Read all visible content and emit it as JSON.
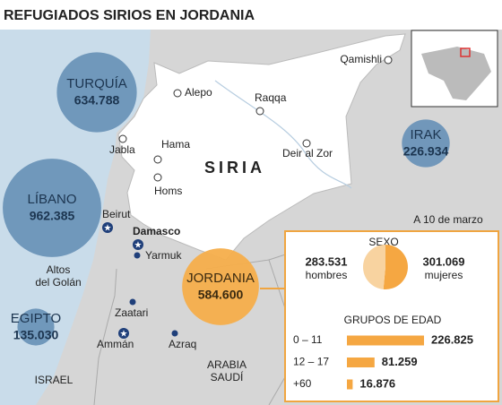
{
  "title": "REFUGIADOS SIRIOS EN JORDANIA",
  "country": "SIRIA",
  "places": [
    {
      "name": "Qamishli"
    },
    {
      "name": "Alepo"
    },
    {
      "name": "Raqqa"
    },
    {
      "name": "Jabla"
    },
    {
      "name": "Hama"
    },
    {
      "name": "Deir al Zor"
    },
    {
      "name": "Homs"
    },
    {
      "name": "Beirut"
    },
    {
      "name": "Damasco"
    },
    {
      "name": "Yarmuk"
    },
    {
      "name": "Zaatari"
    },
    {
      "name": "Ammán"
    },
    {
      "name": "Azraq"
    }
  ],
  "regions": [
    {
      "lines": [
        "Altos",
        "del Golán"
      ]
    },
    {
      "lines": [
        "ISRAEL"
      ]
    },
    {
      "lines": [
        "ARABIA",
        "SAUDÍ"
      ]
    }
  ],
  "refugees": [
    {
      "name": "TURQUÍA",
      "value": 634788,
      "label": "634.788"
    },
    {
      "name": "LÍBANO",
      "value": 962385,
      "label": "962.385"
    },
    {
      "name": "EGIPTO",
      "value": 135030,
      "label": "135.030"
    },
    {
      "name": "IRAK",
      "value": 226934,
      "label": "226.934"
    },
    {
      "name": "JORDANIA",
      "value": 584600,
      "label": "584.600"
    }
  ],
  "date_note": "A 10 de marzo",
  "sex": {
    "title": "SEXO",
    "groups": [
      {
        "name": "hombres",
        "value": 283531,
        "label": "283.531"
      },
      {
        "name": "mujeres",
        "value": 301069,
        "label": "301.069"
      }
    ]
  },
  "age": {
    "title": "GRUPOS DE EDAD",
    "groups": [
      {
        "name": "0 – 11",
        "value": 226825,
        "label": "226.825"
      },
      {
        "name": "12 – 17",
        "value": 81259,
        "label": "81.259"
      },
      {
        "name": "+60",
        "value": 16876,
        "label": "16.876"
      }
    ]
  }
}
